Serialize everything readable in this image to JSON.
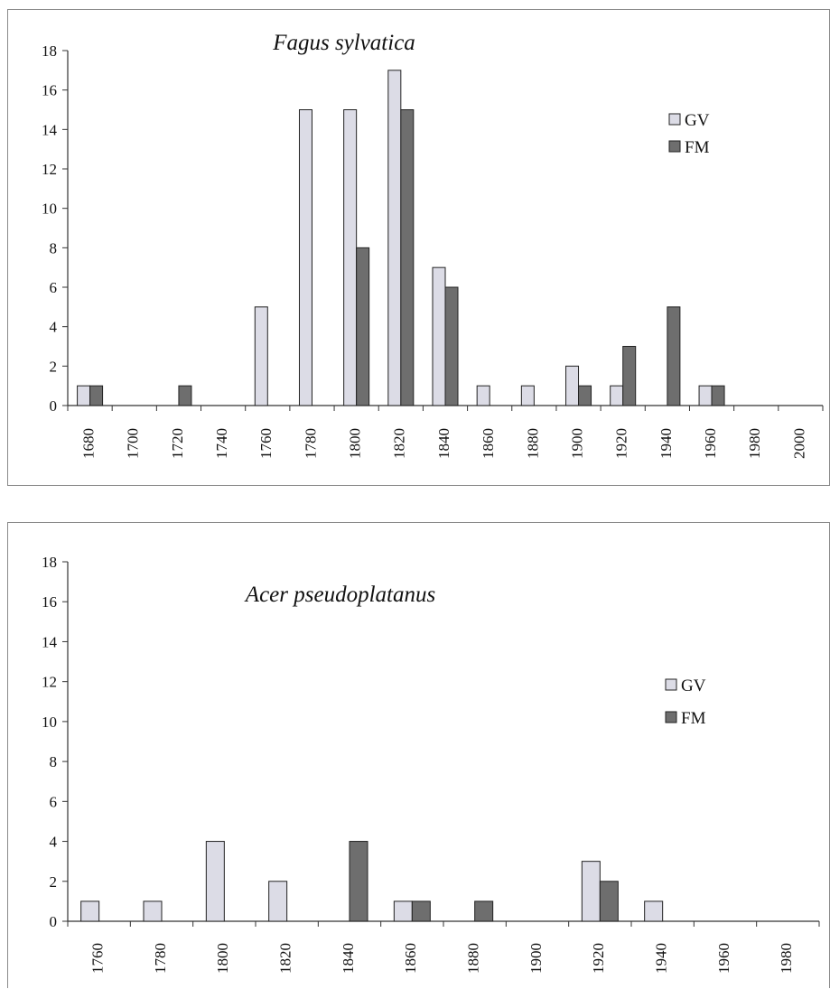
{
  "chart_data": [
    {
      "type": "bar",
      "title": "Fagus sylvatica",
      "categories": [
        "1680",
        "1700",
        "1720",
        "1740",
        "1760",
        "1780",
        "1800",
        "1820",
        "1840",
        "1860",
        "1880",
        "1900",
        "1920",
        "1940",
        "1960",
        "1980",
        "2000"
      ],
      "series": [
        {
          "name": "GV",
          "values": [
            1,
            0,
            0,
            0,
            5,
            15,
            15,
            17,
            7,
            1,
            1,
            2,
            1,
            0,
            1,
            0,
            0
          ]
        },
        {
          "name": "FM",
          "values": [
            1,
            0,
            1,
            0,
            0,
            0,
            8,
            15,
            6,
            0,
            0,
            1,
            3,
            5,
            1,
            0,
            0
          ]
        }
      ],
      "yticks": [
        "0",
        "2",
        "4",
        "6",
        "8",
        "10",
        "12",
        "14",
        "16",
        "18"
      ],
      "ylim": [
        0,
        18
      ],
      "legend_position": "top-right",
      "grid": false,
      "colors": {
        "GV": "#dcdce6",
        "FM": "#6e6e6e"
      }
    },
    {
      "type": "bar",
      "title": "Acer pseudoplatanus",
      "categories": [
        "1760",
        "1780",
        "1800",
        "1820",
        "1840",
        "1860",
        "1880",
        "1900",
        "1920",
        "1940",
        "1960",
        "1980"
      ],
      "series": [
        {
          "name": "GV",
          "values": [
            1,
            1,
            4,
            2,
            0,
            1,
            0,
            0,
            3,
            1,
            0,
            0
          ]
        },
        {
          "name": "FM",
          "values": [
            0,
            0,
            0,
            0,
            4,
            1,
            1,
            0,
            2,
            0,
            0,
            0
          ]
        }
      ],
      "yticks": [
        "0",
        "2",
        "4",
        "6",
        "8",
        "10",
        "12",
        "14",
        "16",
        "18"
      ],
      "ylim": [
        0,
        18
      ],
      "legend_position": "right",
      "grid": false,
      "colors": {
        "GV": "#dcdce6",
        "FM": "#6e6e6e"
      }
    }
  ]
}
